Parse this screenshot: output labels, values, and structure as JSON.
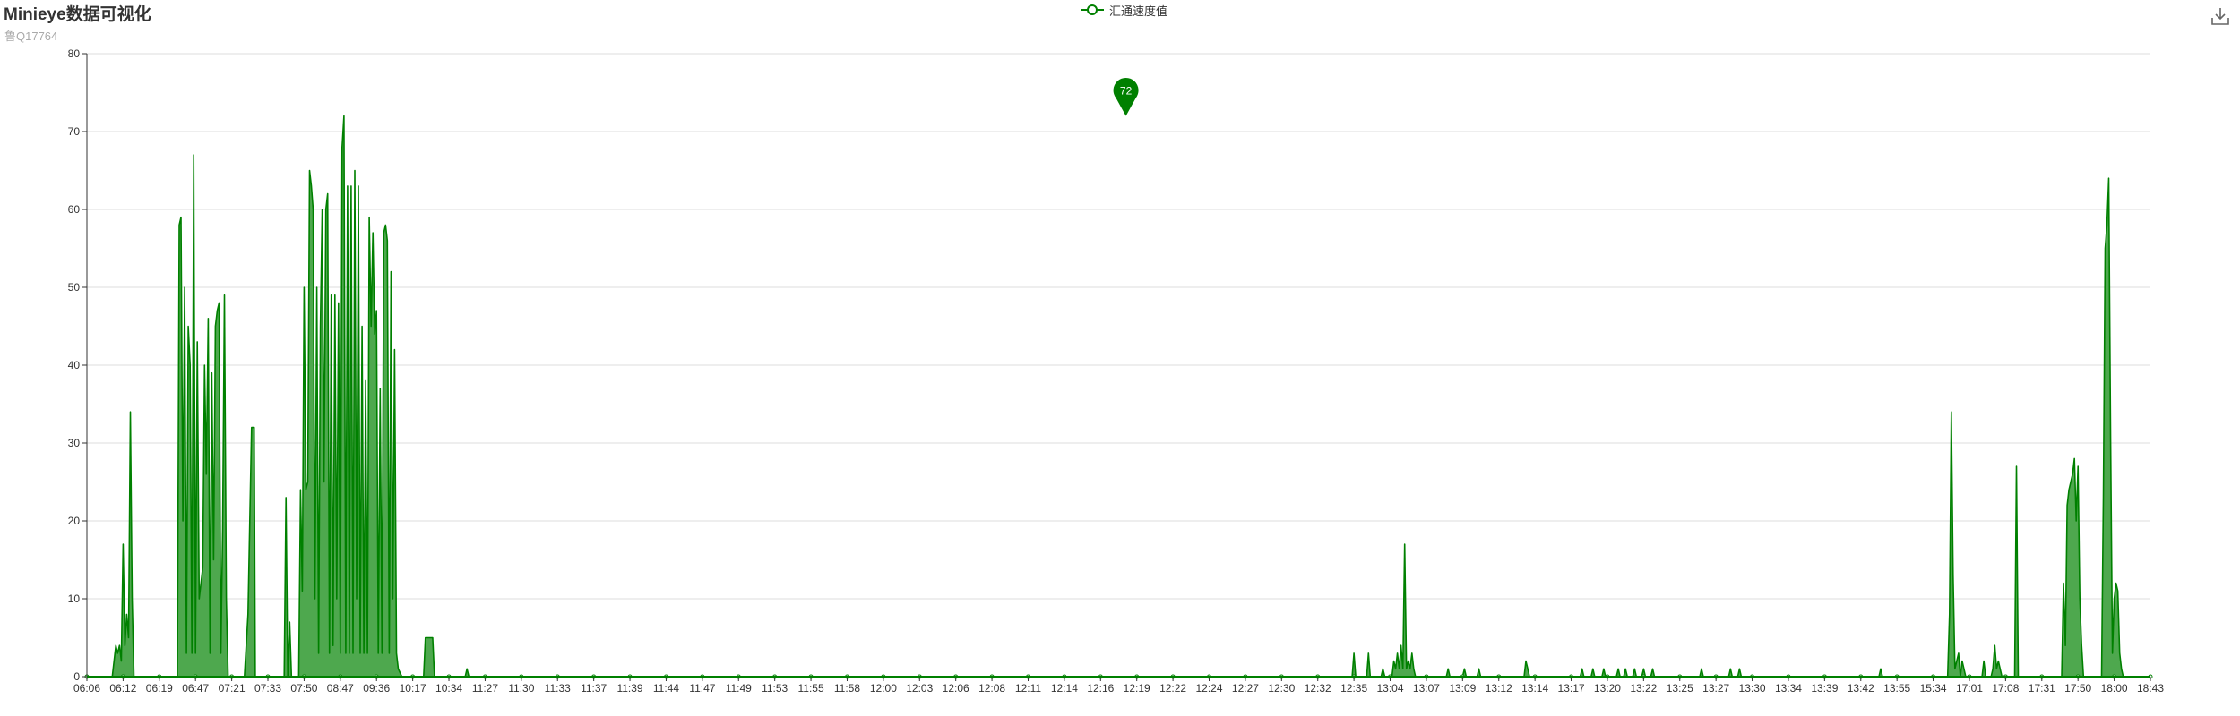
{
  "header": {
    "title": "Minieye数据可视化",
    "subtitle": "鲁Q17764"
  },
  "toolbox": {
    "download_icon": "download-icon"
  },
  "colors": {
    "series": "#008000",
    "area_fill": "#4ea84e",
    "grid": "#dddddd",
    "axis": "#333333",
    "text": "#333333",
    "subtext": "#aaaaaa"
  },
  "chart_data": {
    "type": "area",
    "title": "Minieye数据可视化",
    "subtitle": "鲁Q17764",
    "legend": {
      "entries": [
        "汇通速度值"
      ],
      "position": "top-center"
    },
    "grid": true,
    "ylim": [
      0,
      80
    ],
    "y_ticks": [
      0,
      10,
      20,
      30,
      40,
      50,
      60,
      70,
      80
    ],
    "x_tick_labels": [
      "06:06",
      "06:12",
      "06:19",
      "06:47",
      "07:21",
      "07:33",
      "07:50",
      "08:47",
      "09:36",
      "10:17",
      "10:34",
      "11:27",
      "11:30",
      "11:33",
      "11:37",
      "11:39",
      "11:44",
      "11:47",
      "11:49",
      "11:53",
      "11:55",
      "11:58",
      "12:00",
      "12:03",
      "12:06",
      "12:08",
      "12:11",
      "12:14",
      "12:16",
      "12:19",
      "12:22",
      "12:24",
      "12:27",
      "12:30",
      "12:32",
      "12:35",
      "13:04",
      "13:07",
      "13:09",
      "13:12",
      "13:14",
      "13:17",
      "13:20",
      "13:22",
      "13:25",
      "13:27",
      "13:30",
      "13:34",
      "13:39",
      "13:42",
      "13:55",
      "15:34",
      "17:01",
      "17:08",
      "17:31",
      "17:50",
      "18:00",
      "18:43"
    ],
    "markpoint": {
      "label": "72",
      "value": 72,
      "type": "max",
      "x_index": 28.7
    },
    "series": [
      {
        "name": "汇通速度值",
        "points": [
          [
            0,
            0
          ],
          [
            0.7,
            0
          ],
          [
            0.75,
            2
          ],
          [
            0.8,
            4
          ],
          [
            0.85,
            3
          ],
          [
            0.9,
            4
          ],
          [
            0.95,
            2
          ],
          [
            1.0,
            17
          ],
          [
            1.05,
            4
          ],
          [
            1.1,
            8
          ],
          [
            1.15,
            5
          ],
          [
            1.2,
            34
          ],
          [
            1.25,
            10
          ],
          [
            1.3,
            0
          ],
          [
            2.5,
            0
          ],
          [
            2.55,
            58
          ],
          [
            2.6,
            59
          ],
          [
            2.65,
            20
          ],
          [
            2.7,
            50
          ],
          [
            2.75,
            3
          ],
          [
            2.8,
            45
          ],
          [
            2.85,
            40
          ],
          [
            2.9,
            3
          ],
          [
            2.95,
            67
          ],
          [
            3.0,
            3
          ],
          [
            3.05,
            43
          ],
          [
            3.1,
            10
          ],
          [
            3.15,
            12
          ],
          [
            3.2,
            14
          ],
          [
            3.25,
            40
          ],
          [
            3.3,
            26
          ],
          [
            3.35,
            46
          ],
          [
            3.4,
            3
          ],
          [
            3.45,
            39
          ],
          [
            3.5,
            15
          ],
          [
            3.55,
            45
          ],
          [
            3.6,
            47
          ],
          [
            3.65,
            48
          ],
          [
            3.7,
            3
          ],
          [
            3.75,
            19
          ],
          [
            3.8,
            49
          ],
          [
            3.85,
            10
          ],
          [
            3.9,
            0
          ],
          [
            4.35,
            0
          ],
          [
            4.45,
            8
          ],
          [
            4.55,
            32
          ],
          [
            4.62,
            32
          ],
          [
            4.65,
            0
          ],
          [
            5.45,
            0
          ],
          [
            5.5,
            23
          ],
          [
            5.55,
            0
          ],
          [
            5.6,
            7
          ],
          [
            5.65,
            0
          ],
          [
            5.85,
            0
          ],
          [
            5.9,
            24
          ],
          [
            5.95,
            11
          ],
          [
            6.0,
            50
          ],
          [
            6.05,
            24
          ],
          [
            6.1,
            25
          ],
          [
            6.15,
            65
          ],
          [
            6.2,
            63
          ],
          [
            6.25,
            60
          ],
          [
            6.3,
            10
          ],
          [
            6.35,
            50
          ],
          [
            6.4,
            3
          ],
          [
            6.45,
            45
          ],
          [
            6.5,
            60
          ],
          [
            6.55,
            25
          ],
          [
            6.6,
            60
          ],
          [
            6.65,
            62
          ],
          [
            6.7,
            3
          ],
          [
            6.75,
            49
          ],
          [
            6.8,
            4
          ],
          [
            6.85,
            49
          ],
          [
            6.9,
            10
          ],
          [
            6.95,
            48
          ],
          [
            7.0,
            3
          ],
          [
            7.05,
            68
          ],
          [
            7.1,
            72
          ],
          [
            7.15,
            3
          ],
          [
            7.2,
            63
          ],
          [
            7.25,
            3
          ],
          [
            7.3,
            63
          ],
          [
            7.35,
            3
          ],
          [
            7.4,
            65
          ],
          [
            7.45,
            10
          ],
          [
            7.5,
            63
          ],
          [
            7.55,
            3
          ],
          [
            7.6,
            45
          ],
          [
            7.65,
            3
          ],
          [
            7.7,
            38
          ],
          [
            7.75,
            3
          ],
          [
            7.8,
            59
          ],
          [
            7.85,
            45
          ],
          [
            7.9,
            57
          ],
          [
            7.95,
            44
          ],
          [
            8.0,
            47
          ],
          [
            8.05,
            3
          ],
          [
            8.1,
            37
          ],
          [
            8.15,
            3
          ],
          [
            8.2,
            57
          ],
          [
            8.25,
            58
          ],
          [
            8.3,
            56
          ],
          [
            8.35,
            3
          ],
          [
            8.4,
            52
          ],
          [
            8.45,
            10
          ],
          [
            8.5,
            42
          ],
          [
            8.55,
            3
          ],
          [
            8.6,
            1
          ],
          [
            8.7,
            0
          ],
          [
            9.3,
            0
          ],
          [
            9.35,
            5
          ],
          [
            9.55,
            5
          ],
          [
            9.6,
            0
          ],
          [
            10.45,
            0
          ],
          [
            10.5,
            1
          ],
          [
            10.55,
            0
          ],
          [
            34.95,
            0
          ],
          [
            35.0,
            3
          ],
          [
            35.05,
            0
          ],
          [
            35.35,
            0
          ],
          [
            35.4,
            3
          ],
          [
            35.45,
            0
          ],
          [
            35.75,
            0
          ],
          [
            35.8,
            1
          ],
          [
            35.85,
            0
          ],
          [
            36.05,
            0
          ],
          [
            36.1,
            2
          ],
          [
            36.15,
            1
          ],
          [
            36.2,
            3
          ],
          [
            36.25,
            1
          ],
          [
            36.3,
            4
          ],
          [
            36.35,
            1
          ],
          [
            36.4,
            17
          ],
          [
            36.45,
            1
          ],
          [
            36.5,
            2
          ],
          [
            36.55,
            1
          ],
          [
            36.6,
            3
          ],
          [
            36.65,
            1
          ],
          [
            36.7,
            0
          ],
          [
            37.55,
            0
          ],
          [
            37.6,
            1
          ],
          [
            37.65,
            0
          ],
          [
            38.0,
            0
          ],
          [
            38.05,
            1
          ],
          [
            38.1,
            0
          ],
          [
            38.4,
            0
          ],
          [
            38.45,
            1
          ],
          [
            38.5,
            0
          ],
          [
            39.7,
            0
          ],
          [
            39.75,
            2
          ],
          [
            39.8,
            1
          ],
          [
            39.85,
            0
          ],
          [
            41.25,
            0
          ],
          [
            41.3,
            1
          ],
          [
            41.35,
            0
          ],
          [
            41.55,
            0
          ],
          [
            41.6,
            1
          ],
          [
            41.65,
            0
          ],
          [
            41.85,
            0
          ],
          [
            41.9,
            1
          ],
          [
            41.95,
            0
          ],
          [
            42.25,
            0
          ],
          [
            42.3,
            1
          ],
          [
            42.35,
            0
          ],
          [
            42.45,
            0
          ],
          [
            42.5,
            1
          ],
          [
            42.55,
            0
          ],
          [
            42.7,
            0
          ],
          [
            42.75,
            1
          ],
          [
            42.8,
            0
          ],
          [
            42.95,
            0
          ],
          [
            43.0,
            1
          ],
          [
            43.05,
            0
          ],
          [
            43.2,
            0
          ],
          [
            43.25,
            1
          ],
          [
            43.3,
            0
          ],
          [
            44.55,
            0
          ],
          [
            44.6,
            1
          ],
          [
            44.65,
            0
          ],
          [
            45.35,
            0
          ],
          [
            45.4,
            1
          ],
          [
            45.45,
            0
          ],
          [
            45.6,
            0
          ],
          [
            45.65,
            1
          ],
          [
            45.7,
            0
          ],
          [
            49.5,
            0
          ],
          [
            49.55,
            1
          ],
          [
            49.6,
            0
          ],
          [
            51.4,
            0
          ],
          [
            51.45,
            8
          ],
          [
            51.5,
            34
          ],
          [
            51.55,
            13
          ],
          [
            51.6,
            1
          ],
          [
            51.7,
            3
          ],
          [
            51.75,
            0
          ],
          [
            51.8,
            2
          ],
          [
            51.85,
            1
          ],
          [
            51.9,
            0
          ],
          [
            52.35,
            0
          ],
          [
            52.4,
            2
          ],
          [
            52.45,
            0
          ],
          [
            52.6,
            0
          ],
          [
            52.65,
            1
          ],
          [
            52.7,
            4
          ],
          [
            52.75,
            1
          ],
          [
            52.8,
            2
          ],
          [
            52.85,
            1
          ],
          [
            52.9,
            0
          ],
          [
            53.25,
            0
          ],
          [
            53.3,
            27
          ],
          [
            53.35,
            0
          ],
          [
            54.55,
            0
          ],
          [
            54.6,
            12
          ],
          [
            54.65,
            4
          ],
          [
            54.7,
            22
          ],
          [
            54.75,
            24
          ],
          [
            54.8,
            25
          ],
          [
            54.85,
            26
          ],
          [
            54.9,
            28
          ],
          [
            54.95,
            20
          ],
          [
            55.0,
            27
          ],
          [
            55.05,
            10
          ],
          [
            55.1,
            4
          ],
          [
            55.15,
            0
          ],
          [
            55.65,
            0
          ],
          [
            55.7,
            23
          ],
          [
            55.75,
            55
          ],
          [
            55.8,
            58
          ],
          [
            55.85,
            64
          ],
          [
            55.9,
            30
          ],
          [
            55.95,
            3
          ],
          [
            56.0,
            10
          ],
          [
            56.05,
            12
          ],
          [
            56.1,
            11
          ],
          [
            56.15,
            3
          ],
          [
            56.2,
            1
          ],
          [
            56.25,
            0
          ],
          [
            56.95,
            0
          ]
        ]
      }
    ]
  }
}
